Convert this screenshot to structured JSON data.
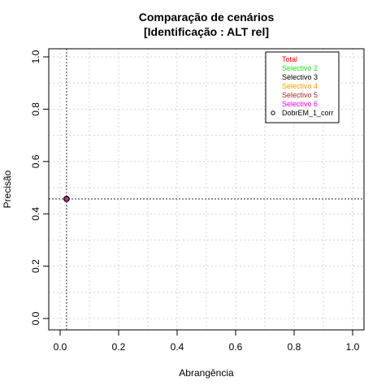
{
  "chart_data": {
    "type": "scatter",
    "title": "Comparação de cenários",
    "subtitle": "[Identificação : ALT rel]",
    "xlabel": "Abrangência",
    "ylabel": "Precisão",
    "xlim": [
      0,
      1
    ],
    "ylim": [
      0,
      1
    ],
    "xticks": [
      "0.0",
      "0.2",
      "0.4",
      "0.6",
      "0.8",
      "1.0"
    ],
    "yticks": [
      "0.0",
      "0.2",
      "0.4",
      "0.6",
      "0.8",
      "1.0"
    ],
    "grid": true,
    "legend_position": "top-right",
    "reference_lines": {
      "x": 0.022,
      "y": 0.457
    },
    "series": [
      {
        "name": "Total",
        "color": "#ff0000",
        "marker": "none",
        "x": [
          0.022
        ],
        "y": [
          0.457
        ]
      },
      {
        "name": "Selectivo 2",
        "color": "#22dd22",
        "marker": "none",
        "x": [
          0.022
        ],
        "y": [
          0.457
        ]
      },
      {
        "name": "Selectivo 3",
        "color": "#000000",
        "marker": "none",
        "x": [
          0.022
        ],
        "y": [
          0.457
        ]
      },
      {
        "name": "Selectivo 4",
        "color": "#ff9900",
        "marker": "none",
        "x": [
          0.022
        ],
        "y": [
          0.457
        ]
      },
      {
        "name": "Selectivo 5",
        "color": "#a52a2a",
        "marker": "none",
        "x": [
          0.022
        ],
        "y": [
          0.457
        ]
      },
      {
        "name": "Selectivo 6",
        "color": "#ee00ee",
        "marker": "none",
        "x": [
          0.022
        ],
        "y": [
          0.457
        ]
      },
      {
        "name": "DobrEM_1_corr",
        "color": "#000000",
        "marker": "circle",
        "x": [
          0.022
        ],
        "y": [
          0.457
        ]
      }
    ]
  }
}
